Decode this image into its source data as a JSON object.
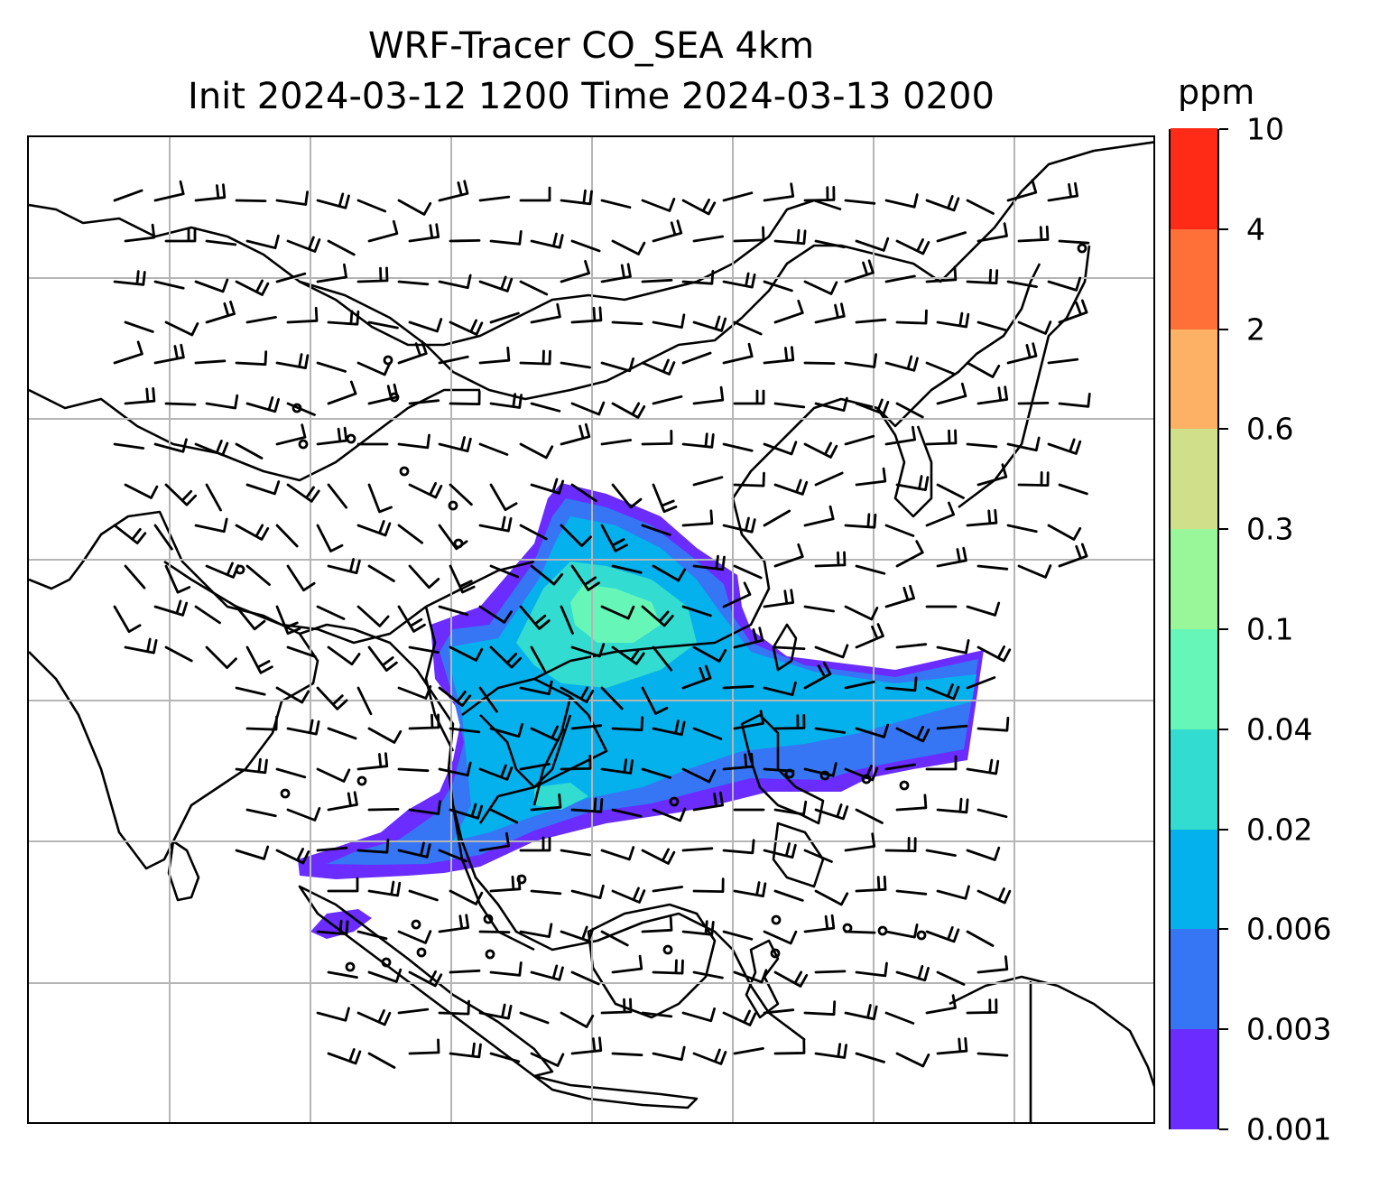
{
  "title": {
    "line1": "WRF-Tracer CO_SEA 4km",
    "line2": "Init 2024-03-12 1200 Time 2024-03-13 0200"
  },
  "colorbar": {
    "unit": "ppm",
    "levels": [
      "0.001",
      "0.003",
      "0.006",
      "0.02",
      "0.04",
      "0.1",
      "0.3",
      "0.6",
      "2",
      "4",
      "10"
    ],
    "colors": [
      "#6a2cff",
      "#3676f5",
      "#04b1ed",
      "#32dcd0",
      "#66f7b8",
      "#99f799",
      "#d0e08a",
      "#fdb165",
      "#ff7038",
      "#ff2b17"
    ]
  },
  "map": {
    "gridlines": true,
    "layers": [
      "coastlines",
      "country-borders",
      "CO tracer concentration",
      "wind barbs",
      "calm-wind circles"
    ]
  }
}
